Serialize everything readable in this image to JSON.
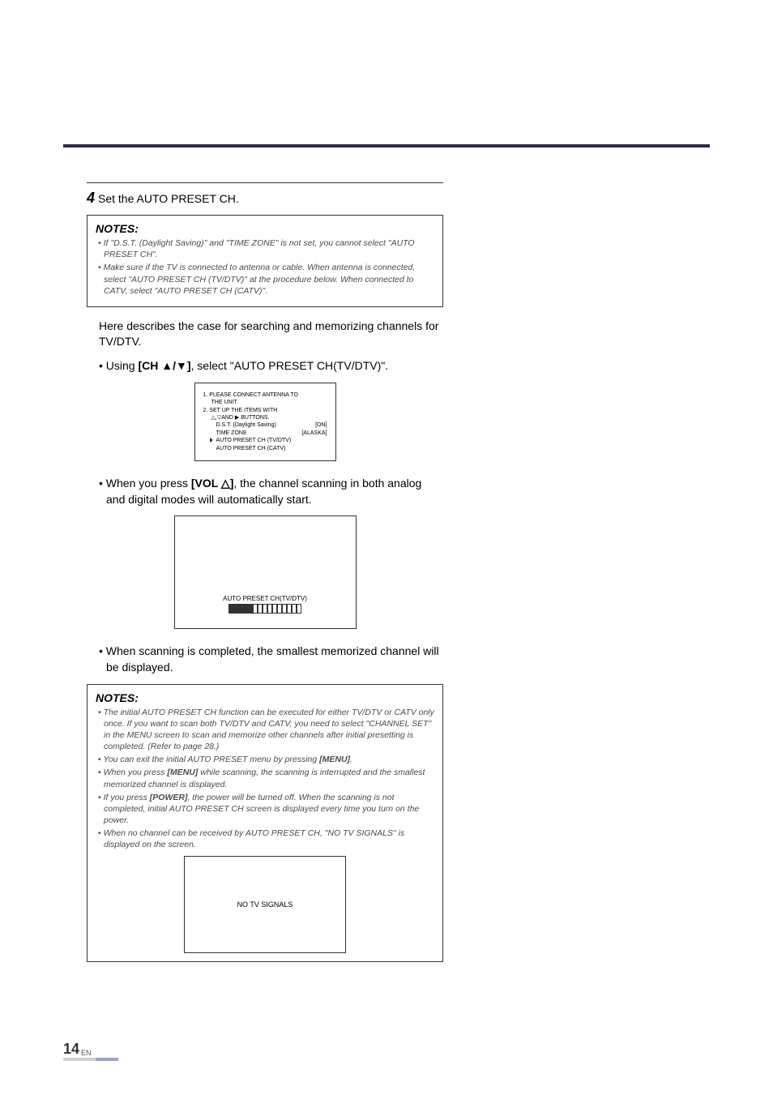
{
  "step": {
    "number": "4",
    "text": "Set the AUTO PRESET CH."
  },
  "notes1": {
    "title": "NOTES:",
    "items": [
      "• If \"D.S.T. (Daylight Saving)\" and \"TIME ZONE\" is not set, you cannot select \"AUTO PRESET CH\".",
      "• Make sure if the TV is connected to antenna or cable. When antenna is connected, select \"AUTO PRESET CH (TV/DTV)\" at the procedure below.  When connected to CATV, select \"AUTO PRESET CH (CATV)\"."
    ]
  },
  "body1": "Here describes the case for searching and memorizing channels for TV/DTV.",
  "bullet1": "• Using [CH ▲/▼], select \"AUTO PRESET CH(TV/DTV)\".",
  "bullet1_prefix": "• Using ",
  "bullet1_bold": "[CH ▲/▼]",
  "bullet1_suffix": ", select \"AUTO PRESET CH(TV/DTV)\".",
  "screen1": {
    "line1": "1. PLEASE CONNECT ANTENNA TO",
    "line1b": "THE UNIT.",
    "line2": "2. SET UP THE ITEMS WITH",
    "line2b": "△,▽AND ▶ BUTTONS.",
    "dst_label": "D.S.T. (Daylight Saving)",
    "dst_value": "[ON]",
    "tz_label": "TIME ZONE",
    "tz_value": "[ALASKA]",
    "preset1": "AUTO PRESET CH (TV/DTV)",
    "preset2": "AUTO PRESET CH (CATV)"
  },
  "bullet2_prefix": "• When you press ",
  "bullet2_bold": "[VOL △]",
  "bullet2_suffix": ", the channel scanning in both analog and digital modes will automatically start.",
  "screen2": {
    "label": "AUTO PRESET CH(TV/DTV)",
    "filled_segments": 5,
    "total_segments": 15
  },
  "bullet3": "• When scanning is completed, the smallest memorized channel will be displayed.",
  "notes2": {
    "title": "NOTES:",
    "items": [
      "• The initial AUTO PRESET CH function can be executed for either TV/DTV or CATV only once. If you want to scan both TV/DTV and CATV, you need to select \"CHANNEL SET\" in the MENU screen to scan and memorize other channels after initial presetting is completed. (Refer to page 28.)",
      "• You can exit the initial AUTO PRESET menu by pressing [MENU].",
      "• When you press [MENU] while scanning, the scanning is interrupted and the smallest memorized channel is displayed.",
      "• If you press [POWER], the power will be turned off. When the scanning is not completed, initial AUTO PRESET CH screen is displayed every time you turn on the power.",
      "• When no channel can be received by AUTO PRESET CH, \"NO TV SIGNALS\" is displayed on the screen."
    ],
    "note2_prefix": "• You can exit the initial AUTO PRESET menu by pressing ",
    "note2_bold": "[MENU]",
    "note2_suffix": ".",
    "note3_prefix": "• When you press ",
    "note3_bold": "[MENU]",
    "note3_suffix": " while scanning, the scanning is interrupted and the smallest memorized channel is displayed.",
    "note4_prefix": "• If you press ",
    "note4_bold": "[POWER]",
    "note4_suffix": ", the power will be turned off. When the scanning is not completed, initial AUTO PRESET CH screen is displayed every time you turn on the power."
  },
  "no_signal": "NO TV SIGNALS",
  "page": {
    "number": "14",
    "lang": "EN"
  },
  "colors": {
    "topbar": "#2a2a4a",
    "text": "#333333",
    "italic_text": "#4a4a4a",
    "accent_dash": "#9aa5c5",
    "grey_dash": "#d0d0d0"
  }
}
